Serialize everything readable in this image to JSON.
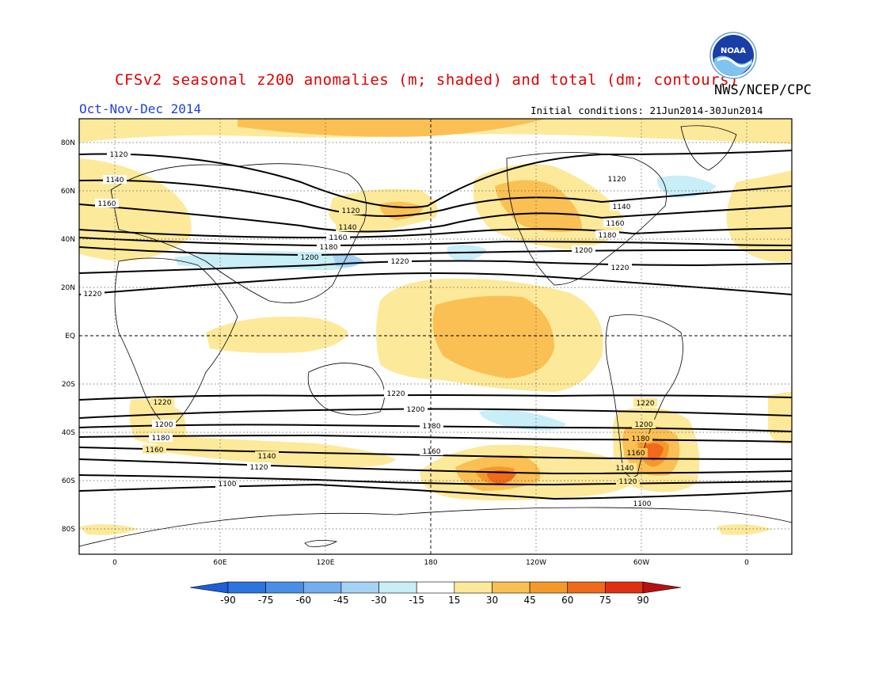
{
  "title": "CFSv2 seasonal z200 anomalies (m; shaded) and total (dm; contours)",
  "agency": "NWS/NCEP/CPC",
  "season": "Oct-Nov-Dec 2014",
  "initial_conditions": "Initial conditions: 21Jun2014-30Jun2014",
  "logo_text": "NOAA",
  "map": {
    "lat_labels": [
      "80N",
      "60N",
      "40N",
      "20N",
      "EQ",
      "20S",
      "40S",
      "60S",
      "80S"
    ],
    "lon_labels": [
      "0",
      "60E",
      "120E",
      "180",
      "120W",
      "60W",
      "0"
    ],
    "colorbar": {
      "ticks": [
        "-90",
        "-75",
        "-60",
        "-45",
        "-30",
        "-15",
        "15",
        "30",
        "45",
        "60",
        "75",
        "90"
      ],
      "colors": [
        "#1e5fd8",
        "#2d74e0",
        "#4a8ee8",
        "#74aef0",
        "#a6d2f6",
        "#c8eef8",
        "#ffffff",
        "#fde99a",
        "#fbc054",
        "#f59a2a",
        "#f06a1c",
        "#e03010",
        "#b81010"
      ]
    },
    "contour_labels": [
      "1120",
      "1140",
      "1160",
      "1120",
      "1140",
      "1160",
      "1180",
      "1200",
      "1220",
      "1120",
      "1140",
      "1160",
      "1180",
      "1200",
      "1220",
      "1220",
      "1220",
      "1200",
      "1180",
      "1160",
      "1220",
      "1200",
      "1180",
      "1160",
      "1140",
      "1120",
      "1100",
      "1220",
      "1200",
      "1180",
      "1160",
      "1140",
      "1120",
      "1100"
    ]
  }
}
